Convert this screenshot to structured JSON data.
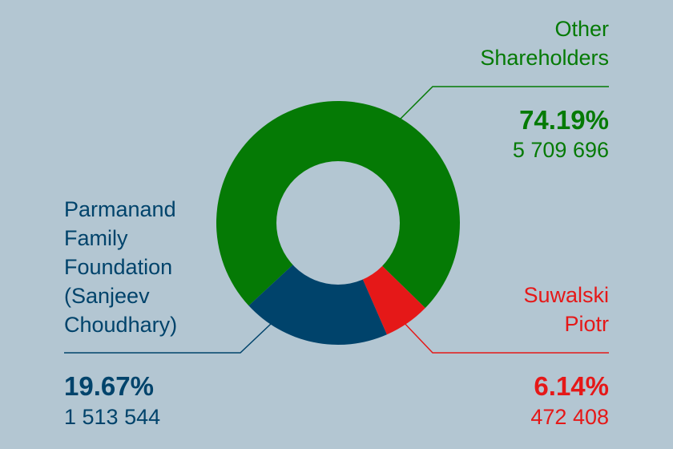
{
  "chart_data": {
    "type": "pie",
    "variant": "donut",
    "slices": [
      {
        "name": "Other Shareholders",
        "name_lines": [
          "Other",
          "Shareholders"
        ],
        "percent": 74.19,
        "percent_label": "74.19%",
        "count_label": "5 709 696",
        "color": "#057a05"
      },
      {
        "name": "Suwalski Piotr",
        "name_lines": [
          "Suwalski",
          "Piotr"
        ],
        "percent": 6.14,
        "percent_label": "6.14%",
        "count_label": "472 408",
        "color": "#e51818"
      },
      {
        "name": "Parmanand Family Foundation (Sanjeev Choudhary)",
        "name_lines": [
          "Parmanand",
          "Family",
          "Foundation",
          "(Sanjeev",
          "Choudhary)"
        ],
        "percent": 19.67,
        "percent_label": "19.67%",
        "count_label": "1 513 544",
        "color": "#00436b"
      }
    ],
    "legend": "callout labels around donut"
  },
  "colors": {
    "background": "#b3c6d2",
    "inner": "#b3c6d2"
  }
}
